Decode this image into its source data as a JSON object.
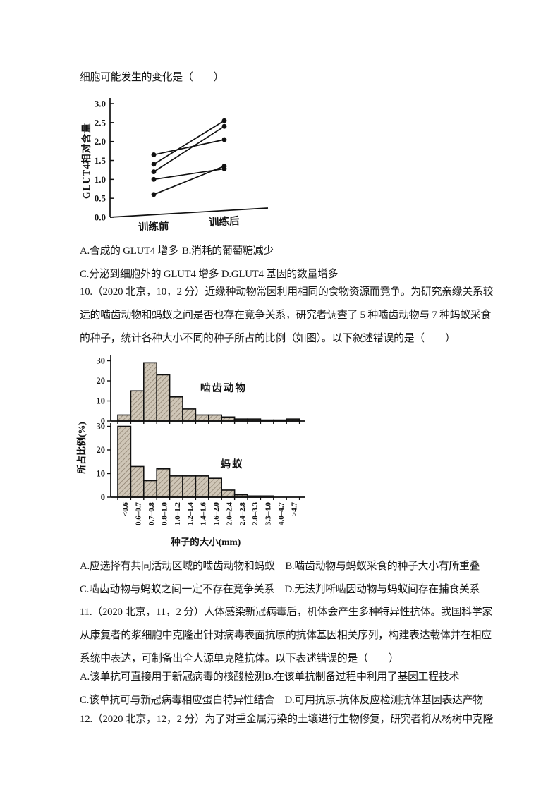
{
  "document": {
    "intro_line": "细胞可能发生的变化是（　　）",
    "q9_option_a": "A.合成的 GLUT4 增多",
    "q9_option_b": "B.消耗的葡萄糖减少",
    "q9_options_cd": "C.分泌到细胞外的 GLUT4 增多 D.GLUT4 基因的数量增多",
    "q10_line1": "10.（2020 北京，10，2 分）近缘种动物常因利用相同的食物资源而竞争。为研究亲缘关系较",
    "q10_line2": "远的啮齿动物和蚂蚁之间是否也存在竞争关系，研究者调查了 5 种啮齿动物与 7 种蚂蚁采食",
    "q10_line3": "的种子，统计各种大小不同的种子所占的比例（如图）。以下叙述错误的是（　　）",
    "q10_options_line1": "A.应选择有共同活动区域的啮齿动物和蚂蚁　B.啮齿动物与蚂蚁采食的种子大小有所重叠",
    "q10_options_line2": "C.啮齿动物与蚂蚁之间一定不存在竞争关系　D.无法判断啮因动物与蚂蚁间存在捕食关系",
    "q11_line1": "11.（2020 北京，11，2 分）人体感染新冠病毒后，机体会产生多种特异性抗体。我国科学家",
    "q11_line2": "从康复者的浆细胞中克隆出针对病毒表面抗原的抗体基因相关序列，构建表达载体并在相应",
    "q11_line3": "系统中表达，可制备出全人源单克隆抗体。以下表述错误的是（　　）",
    "q11_options_line1": "A.该单抗可直接用于新冠病毒的核酸检测B.在该单抗制备过程中利用了基因工程技术",
    "q11_options_line2": "C.该单抗可与新冠病毒相应蛋白特异性结合　D.可用抗原-抗体反应检测抗体基因表达产物",
    "q12_line1": "12.（2020 北京，12，2 分）为了对重金属污染的土壤进行生物修复，研究者将从杨树中克隆"
  },
  "chart_data": [
    {
      "type": "line",
      "description": "GLUT4 relative content of five subjects before and after training",
      "ylabel": "GLUT4相对含量",
      "categories": [
        "训练前",
        "训练后"
      ],
      "ylim": [
        0,
        3.0
      ],
      "yticks": [
        "0.0",
        "0.5",
        "1.0",
        "1.5",
        "2.0",
        "2.5",
        "3.0"
      ],
      "series": [
        {
          "values": [
            1.65,
            2.05
          ]
        },
        {
          "values": [
            1.4,
            2.55
          ]
        },
        {
          "values": [
            1.2,
            2.4
          ]
        },
        {
          "values": [
            1.0,
            1.28
          ]
        },
        {
          "values": [
            0.6,
            1.35
          ]
        }
      ],
      "line_color": "#111111"
    },
    {
      "type": "bar",
      "description": "Percentage of seeds of different sizes eaten by rodents and ants",
      "categories": [
        "<0.6",
        "0.6–0.7",
        "0.7–0.8",
        "0.8–1.0",
        "1.0–1.2",
        "1.2–1.4",
        "1.4–1.6",
        "1.6–2.0",
        "2.0–2.4",
        "2.4–2.8",
        "2.8–3.3",
        "3.3–4.0",
        "4.0–4.7",
        ">4.7"
      ],
      "series": [
        {
          "name": "啮齿动物",
          "values": [
            3,
            15,
            29,
            23,
            12,
            6,
            3,
            3,
            2,
            1,
            1,
            0.5,
            0.5,
            1
          ]
        },
        {
          "name": "蚂蚁",
          "values": [
            30,
            13,
            7,
            12,
            9,
            9,
            9,
            8,
            3,
            1,
            0.5,
            0.5,
            0,
            0
          ]
        }
      ],
      "ylabel": "所占比例(%)",
      "xlabel": "种子的大小(mm)",
      "ylim": [
        0,
        30
      ],
      "yticks": [
        0,
        10,
        20,
        30
      ],
      "bar_fill": "#cfc6b7",
      "bar_hatch": "#8d8170",
      "axis_color": "#111111"
    }
  ]
}
